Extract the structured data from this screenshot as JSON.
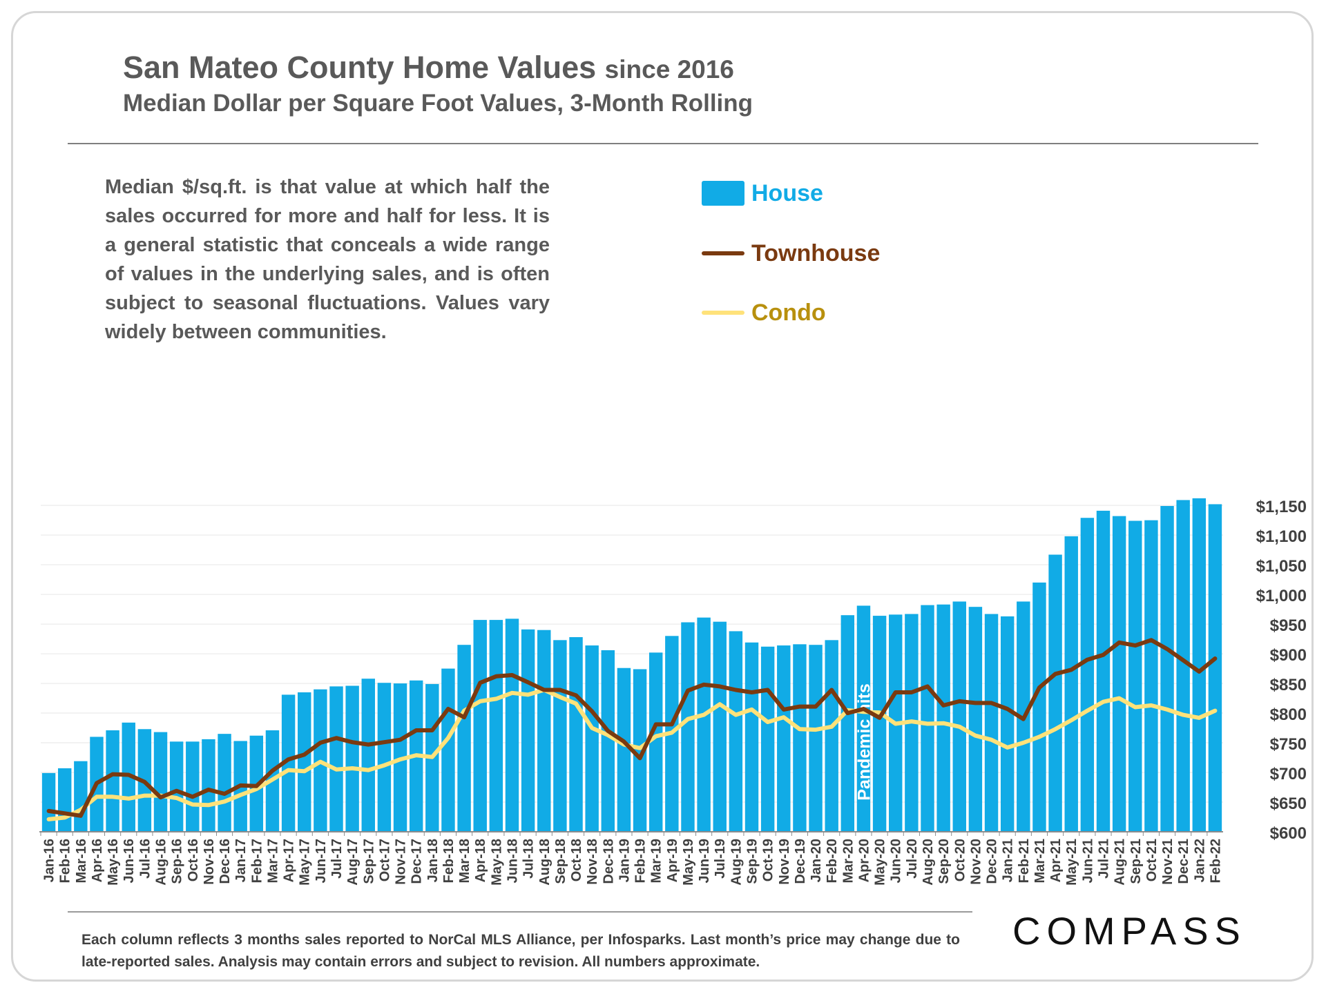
{
  "header": {
    "title": "San Mateo County Home Values",
    "title_suffix": "since 2016",
    "subtitle": "Median Dollar per Square Foot Values, 3-Month Rolling"
  },
  "note": "Median $/sq.ft. is that value at which half the sales occurred for more and half for less. It is a general statistic that conceals a wide range of values in the underlying sales, and is often subject to seasonal fluctuations. Values vary widely between communities.",
  "annotation": "Pandemic hits",
  "footnote": "Each column reflects 3 months sales reported to NorCal MLS Alliance, per Infosparks. Last month’s price may change due to late-reported sales. Analysis may contain errors and subject to revision. All numbers approximate.",
  "logo": "COMPASS",
  "colors": {
    "house": "#11abe6",
    "townhouse": "#7a3a10",
    "condo": "#ffe27a",
    "house_label": "#11abe6",
    "townhouse_label": "#7a3a10",
    "condo_label": "#b8900e"
  },
  "chart_data": {
    "type": "bar",
    "title": "San Mateo County Home Values since 2016",
    "subtitle": "Median Dollar per Square Foot Values, 3-Month Rolling",
    "ylim": [
      600,
      1175
    ],
    "y_ticks": [
      600,
      650,
      700,
      750,
      800,
      850,
      900,
      950,
      1000,
      1050,
      1100,
      1150
    ],
    "y_tick_labels": [
      "$600",
      "$650",
      "$700",
      "$750",
      "$800",
      "$850",
      "$900",
      "$950",
      "$1,000",
      "$1,050",
      "$1,100",
      "$1,150"
    ],
    "legend_position": "top-center",
    "categories": [
      "Jan-16",
      "Feb-16",
      "Mar-16",
      "Apr-16",
      "May-16",
      "Jun-16",
      "Jul-16",
      "Aug-16",
      "Sep-16",
      "Oct-16",
      "Nov-16",
      "Dec-16",
      "Jan-17",
      "Feb-17",
      "Mar-17",
      "Apr-17",
      "May-17",
      "Jun-17",
      "Jul-17",
      "Aug-17",
      "Sep-17",
      "Oct-17",
      "Nov-17",
      "Dec-17",
      "Jan-18",
      "Feb-18",
      "Mar-18",
      "Apr-18",
      "May-18",
      "Jun-18",
      "Jul-18",
      "Aug-18",
      "Sep-18",
      "Oct-18",
      "Nov-18",
      "Dec-18",
      "Jan-19",
      "Feb-19",
      "Mar-19",
      "Apr-19",
      "May-19",
      "Jun-19",
      "Jul-19",
      "Aug-19",
      "Sep-19",
      "Oct-19",
      "Nov-19",
      "Dec-19",
      "Jan-20",
      "Feb-20",
      "Mar-20",
      "Apr-20",
      "May-20",
      "Jun-20",
      "Jul-20",
      "Aug-20",
      "Sep-20",
      "Oct-20",
      "Nov-20",
      "Dec-20",
      "Jan-21",
      "Feb-21",
      "Mar-21",
      "Apr-21",
      "May-21",
      "Jun-21",
      "Jul-21",
      "Aug-21",
      "Sep-21",
      "Oct-21",
      "Nov-21",
      "Dec-21",
      "Jan-22",
      "Feb-22"
    ],
    "series": [
      {
        "name": "House",
        "type": "bar",
        "values": [
          699,
          707,
          719,
          760,
          771,
          784,
          773,
          768,
          752,
          752,
          756,
          765,
          753,
          762,
          771,
          831,
          835,
          840,
          845,
          846,
          858,
          851,
          850,
          855,
          849,
          875,
          915,
          957,
          957,
          959,
          941,
          940,
          923,
          928,
          914,
          906,
          876,
          874,
          902,
          930,
          953,
          961,
          954,
          938,
          919,
          912,
          914,
          916,
          915,
          923,
          965,
          981,
          964,
          966,
          967,
          982,
          983,
          988,
          979,
          967,
          963,
          988,
          1020,
          1067,
          1098,
          1129,
          1141,
          1132,
          1124,
          1125,
          1149,
          1159,
          1162,
          1152
        ]
      },
      {
        "name": "Townhouse",
        "type": "line",
        "values": [
          635,
          631,
          627,
          682,
          697,
          696,
          684,
          658,
          669,
          659,
          671,
          664,
          678,
          677,
          703,
          722,
          730,
          750,
          758,
          751,
          747,
          751,
          755,
          771,
          771,
          807,
          793,
          851,
          862,
          864,
          852,
          839,
          839,
          830,
          803,
          770,
          752,
          724,
          781,
          781,
          838,
          848,
          845,
          839,
          835,
          839,
          806,
          811,
          811,
          839,
          800,
          807,
          792,
          835,
          835,
          845,
          813,
          820,
          817,
          817,
          807,
          790,
          843,
          866,
          873,
          890,
          898,
          919,
          914,
          923,
          908,
          889,
          870,
          892
        ]
      },
      {
        "name": "Condo",
        "type": "line",
        "values": [
          621,
          624,
          637,
          659,
          659,
          656,
          661,
          661,
          657,
          646,
          645,
          651,
          662,
          672,
          688,
          704,
          702,
          718,
          705,
          707,
          704,
          712,
          722,
          729,
          726,
          758,
          804,
          820,
          824,
          834,
          831,
          839,
          827,
          816,
          775,
          763,
          747,
          741,
          761,
          767,
          790,
          797,
          815,
          797,
          806,
          785,
          793,
          773,
          772,
          777,
          805,
          802,
          801,
          782,
          786,
          782,
          783,
          777,
          762,
          755,
          742,
          750,
          760,
          773,
          788,
          804,
          819,
          825,
          810,
          813,
          806,
          797,
          792,
          804
        ]
      }
    ],
    "annotations": [
      {
        "text": "Pandemic hits",
        "x": "Apr-20",
        "orientation": "vertical"
      }
    ]
  }
}
